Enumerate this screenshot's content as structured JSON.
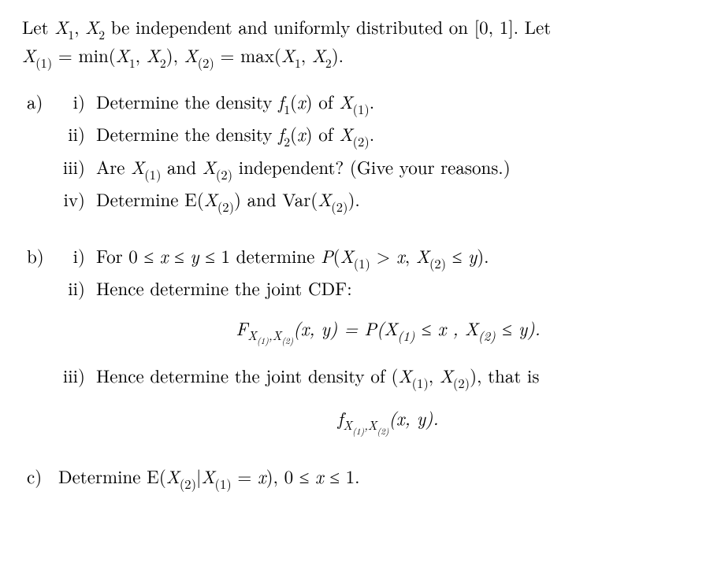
{
  "intro": {
    "line1_pre": "Let ",
    "X1": "X",
    "X1_sub": "1",
    "sep1": ", ",
    "X2": "X",
    "X2_sub": "2",
    "line1_mid": " be independent and uniformly distributed on [0, 1]. Let",
    "X_1": "X",
    "X_1_sub": "(1)",
    "eq1": " = min(",
    "Xa": "X",
    "Xa_sub": "1",
    "comma1": ", ",
    "Xb": "X",
    "Xb_sub": "2",
    "close1": "),  ",
    "X_2": "X",
    "X_2_sub": "(2)",
    "eq2": " = max(",
    "Xc": "X",
    "Xc_sub": "1",
    "comma2": ", ",
    "Xd": "X",
    "Xd_sub": "2",
    "close2": ")."
  },
  "parts": {
    "a": {
      "label": "a)",
      "i": {
        "lbl": "i)",
        "t1": "Determine the density ",
        "f": "f",
        "fs": "1",
        "t2": "(",
        "x": "x",
        "t3": ") of ",
        "X": "X",
        "Xs": "(1)",
        "t4": "."
      },
      "ii": {
        "lbl": "ii)",
        "t1": "Determine the density ",
        "f": "f",
        "fs": "2",
        "t2": "(",
        "x": "x",
        "t3": ") of ",
        "X": "X",
        "Xs": "(2)",
        "t4": "."
      },
      "iii": {
        "lbl": "iii)",
        "t1": "Are ",
        "Xa": "X",
        "Xas": "(1)",
        "t2": " and ",
        "Xb": "X",
        "Xbs": "(2)",
        "t3": " independent? (Give your reasons.)"
      },
      "iv": {
        "lbl": "iv)",
        "t1": "Determine E(",
        "Xa": "X",
        "Xas": "(2)",
        "t2": ") and Var(",
        "Xb": "X",
        "Xbs": "(2)",
        "t3": ")."
      }
    },
    "b": {
      "label": "b)",
      "i": {
        "lbl": "i)",
        "t1": "For 0 ≤ ",
        "x": "x",
        "t2": " ≤ ",
        "y": "y",
        "t3": " ≤ 1 determine ",
        "P": "P",
        "t4": "(",
        "Xa": "X",
        "Xas": "(1)",
        "t5": " > ",
        "xv": "x",
        "t6": ", ",
        "Xb": "X",
        "Xbs": "(2)",
        "t7": " ≤ ",
        "yv": "y",
        "t8": ")."
      },
      "ii": {
        "lbl": "ii)",
        "t1": "Hence determine the joint CDF:"
      },
      "display1": {
        "F": "F",
        "Fs1": "X",
        "Fs1s": "(1)",
        "Fcomma": ",",
        "Fs2": "X",
        "Fs2s": "(2)",
        "open": "(",
        "x": "x",
        "c1": ", ",
        "y": "y",
        "close": ") = ",
        "P": "P",
        "popen": "(",
        "Xa": "X",
        "Xas": "(1)",
        "le1": " ≤ ",
        "xv": "x",
        "sep": " ,  ",
        "Xb": "X",
        "Xbs": "(2)",
        "le2": " ≤ ",
        "yv": "y",
        "pclose": ")."
      },
      "iii": {
        "lbl": "iii)",
        "t1": "Hence determine the joint density of (",
        "Xa": "X",
        "Xas": "(1)",
        "t2": ", ",
        "Xb": "X",
        "Xbs": "(2)",
        "t3": "), that is"
      },
      "display2": {
        "f": "f",
        "fs1": "X",
        "fs1s": "(1)",
        "fcomma": ",",
        "fs2": "X",
        "fs2s": "(2)",
        "open": "(",
        "x": "x",
        "c1": ", ",
        "y": "y",
        "close": ")."
      }
    },
    "c": {
      "label": "c)",
      "t1": "Determine E(",
      "Xa": "X",
      "Xas": "(2)",
      "bar": "|",
      "Xb": "X",
      "Xbs": "(1)",
      "t2": " = ",
      "x": "x",
      "t3": "), 0 ≤ ",
      "xv": "x",
      "t4": " ≤ 1."
    }
  }
}
